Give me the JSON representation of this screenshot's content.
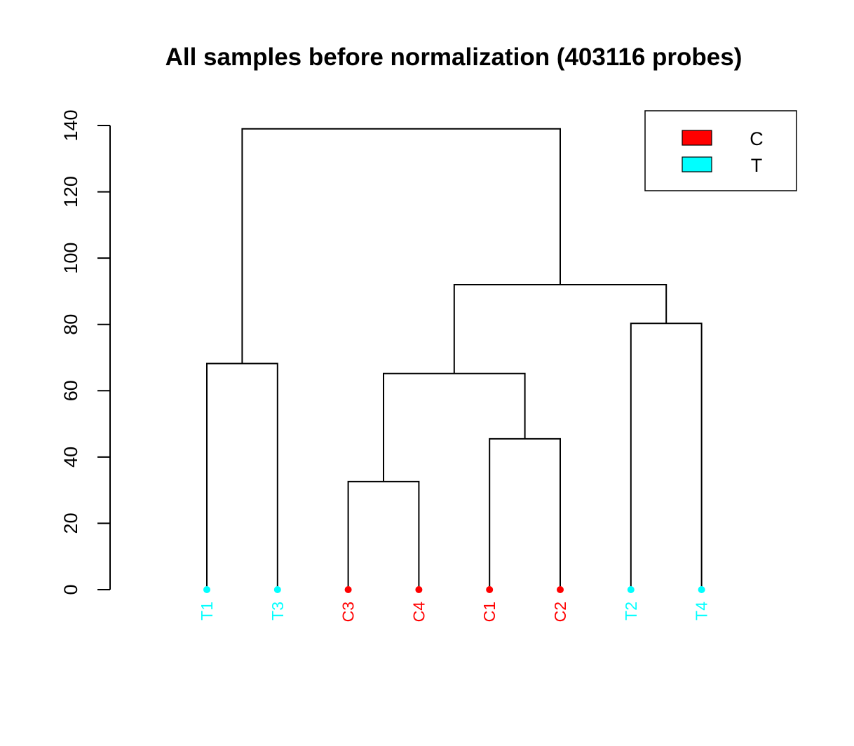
{
  "chart_data": {
    "type": "dendrogram",
    "title": "All samples before normalization (403116 probes)",
    "xlabel": "",
    "ylabel": "",
    "ylim": [
      0,
      140
    ],
    "yticks": [
      0,
      20,
      40,
      60,
      80,
      100,
      120,
      140
    ],
    "leaves": [
      {
        "label": "T1",
        "group": "T"
      },
      {
        "label": "T3",
        "group": "T"
      },
      {
        "label": "C3",
        "group": "C"
      },
      {
        "label": "C4",
        "group": "C"
      },
      {
        "label": "C1",
        "group": "C"
      },
      {
        "label": "C2",
        "group": "C"
      },
      {
        "label": "T2",
        "group": "T"
      },
      {
        "label": "T4",
        "group": "T"
      }
    ],
    "merges": [
      {
        "id": "m1",
        "left": "T1",
        "right": "T3",
        "height": 68.2
      },
      {
        "id": "m2",
        "left": "C3",
        "right": "C4",
        "height": 32.6
      },
      {
        "id": "m3",
        "left": "C1",
        "right": "C2",
        "height": 45.5
      },
      {
        "id": "m4",
        "left": "m2",
        "right": "m3",
        "height": 65.2
      },
      {
        "id": "m5",
        "left": "T2",
        "right": "T4",
        "height": 80.3
      },
      {
        "id": "m6",
        "left": "m4",
        "right": "m5",
        "height": 92.0
      },
      {
        "id": "m7",
        "left": "m1",
        "right": "m6",
        "height": 139.0
      }
    ],
    "legend": {
      "position": "top-right",
      "entries": [
        {
          "label": "C",
          "color": "#ff0000"
        },
        {
          "label": "T",
          "color": "#00ffff"
        }
      ]
    },
    "group_colors": {
      "C": "#ff0000",
      "T": "#00ffff"
    }
  }
}
